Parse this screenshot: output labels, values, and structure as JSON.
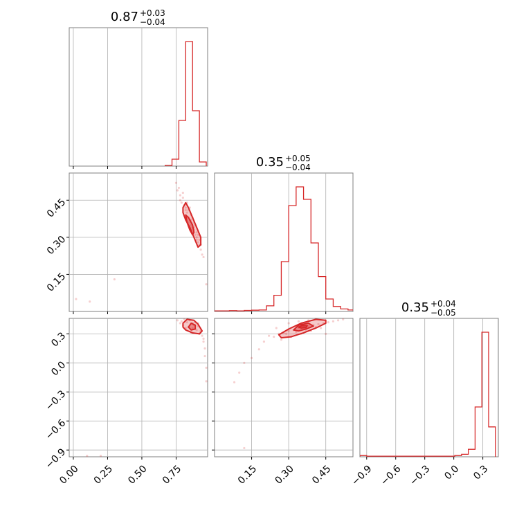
{
  "chart_data": {
    "type": "corner",
    "color": "#d62728",
    "grid": true,
    "parameters": [
      {
        "title": {
          "median": "0.87",
          "plus": "+0.03",
          "minus": "−0.04"
        },
        "range": [
          -0.03,
          0.98
        ],
        "ticks": [
          0.0,
          0.25,
          0.5,
          0.75
        ],
        "tick_labels": [
          "0.00",
          "0.25",
          "0.50",
          "0.75"
        ],
        "histogram": {
          "bin_edges": [
            0.67,
            0.72,
            0.77,
            0.82,
            0.87,
            0.92,
            0.97
          ],
          "counts": [
            0.005,
            0.05,
            0.33,
            0.9,
            0.4,
            0.03
          ]
        }
      },
      {
        "title": {
          "median": "0.35",
          "plus": "+0.05",
          "minus": "−0.04"
        },
        "range": [
          0.0,
          0.56
        ],
        "ticks": [
          0.15,
          0.3,
          0.45
        ],
        "tick_labels": [
          "0.15",
          "0.30",
          "0.45"
        ],
        "histogram": {
          "bin_edges": [
            0.0,
            0.03,
            0.06,
            0.09,
            0.12,
            0.15,
            0.18,
            0.21,
            0.24,
            0.27,
            0.3,
            0.33,
            0.36,
            0.39,
            0.42,
            0.45,
            0.48,
            0.51,
            0.54,
            0.57
          ],
          "counts": [
            0.005,
            0.005,
            0.007,
            0.005,
            0.008,
            0.01,
            0.012,
            0.045,
            0.13,
            0.4,
            0.85,
            1.0,
            0.9,
            0.55,
            0.28,
            0.1,
            0.04,
            0.02,
            0.012
          ]
        }
      },
      {
        "title": {
          "median": "0.35",
          "plus": "+0.04",
          "minus": "−0.05"
        },
        "range": [
          -0.97,
          0.46
        ],
        "ticks": [
          -0.9,
          -0.6,
          -0.3,
          0.0,
          0.3
        ],
        "tick_labels": [
          "−0.9",
          "−0.6",
          "−0.3",
          "0.0",
          "0.3"
        ],
        "histogram": {
          "bin_edges": [
            -0.97,
            -0.9,
            -0.83,
            -0.76,
            -0.69,
            -0.62,
            -0.55,
            -0.48,
            -0.41,
            -0.34,
            -0.27,
            -0.2,
            -0.13,
            -0.06,
            0.01,
            0.08,
            0.15,
            0.22,
            0.29,
            0.36,
            0.43
          ],
          "counts": [
            0.01,
            0.005,
            0.005,
            0.005,
            0.005,
            0.005,
            0.005,
            0.005,
            0.005,
            0.005,
            0.005,
            0.005,
            0.005,
            0.005,
            0.01,
            0.02,
            0.06,
            0.4,
            1.0,
            0.24
          ]
        }
      }
    ],
    "pairs": [
      {
        "x_param": 0,
        "y_param": 1,
        "points": [
          [
            0.75,
            0.52
          ],
          [
            0.77,
            0.5
          ],
          [
            0.78,
            0.47
          ],
          [
            0.8,
            0.46
          ],
          [
            0.79,
            0.44
          ],
          [
            0.81,
            0.43
          ],
          [
            0.82,
            0.41
          ],
          [
            0.83,
            0.4
          ],
          [
            0.84,
            0.38
          ],
          [
            0.85,
            0.37
          ],
          [
            0.86,
            0.35
          ],
          [
            0.87,
            0.34
          ],
          [
            0.88,
            0.33
          ],
          [
            0.89,
            0.31
          ],
          [
            0.9,
            0.3
          ],
          [
            0.91,
            0.28
          ],
          [
            0.92,
            0.27
          ],
          [
            0.93,
            0.25
          ],
          [
            0.94,
            0.23
          ],
          [
            0.8,
            0.48
          ],
          [
            0.83,
            0.44
          ],
          [
            0.86,
            0.39
          ],
          [
            0.88,
            0.36
          ],
          [
            0.9,
            0.32
          ],
          [
            0.92,
            0.29
          ],
          [
            0.85,
            0.42
          ],
          [
            0.87,
            0.38
          ],
          [
            0.89,
            0.35
          ],
          [
            0.91,
            0.31
          ],
          [
            0.93,
            0.27
          ],
          [
            0.76,
            0.49
          ],
          [
            0.78,
            0.45
          ],
          [
            0.82,
            0.39
          ],
          [
            0.84,
            0.36
          ],
          [
            0.95,
            0.22
          ],
          [
            0.02,
            0.05
          ],
          [
            0.3,
            0.13
          ],
          [
            0.12,
            0.04
          ],
          [
            0.97,
            0.11
          ],
          [
            0.82,
            0.42
          ],
          [
            0.84,
            0.41
          ],
          [
            0.86,
            0.37
          ],
          [
            0.88,
            0.34
          ],
          [
            0.9,
            0.29
          ]
        ],
        "contours": [
          [
            [
              0.8,
              0.42
            ],
            [
              0.82,
              0.44
            ],
            [
              0.84,
              0.42
            ],
            [
              0.87,
              0.38
            ],
            [
              0.9,
              0.34
            ],
            [
              0.93,
              0.3
            ],
            [
              0.93,
              0.27
            ],
            [
              0.91,
              0.26
            ],
            [
              0.88,
              0.3
            ],
            [
              0.85,
              0.34
            ],
            [
              0.82,
              0.37
            ],
            [
              0.8,
              0.4
            ]
          ],
          [
            [
              0.82,
              0.39
            ],
            [
              0.84,
              0.38
            ],
            [
              0.87,
              0.35
            ],
            [
              0.88,
              0.32
            ],
            [
              0.87,
              0.31
            ],
            [
              0.85,
              0.33
            ],
            [
              0.83,
              0.36
            ]
          ]
        ]
      },
      {
        "x_param": 0,
        "y_param": 2,
        "points": [
          [
            0.76,
            0.44
          ],
          [
            0.79,
            0.43
          ],
          [
            0.81,
            0.45
          ],
          [
            0.83,
            0.42
          ],
          [
            0.85,
            0.44
          ],
          [
            0.87,
            0.41
          ],
          [
            0.89,
            0.42
          ],
          [
            0.91,
            0.38
          ],
          [
            0.93,
            0.33
          ],
          [
            0.94,
            0.28
          ],
          [
            0.95,
            0.22
          ],
          [
            0.96,
            0.15
          ],
          [
            0.96,
            0.07
          ],
          [
            0.97,
            -0.05
          ],
          [
            0.97,
            -0.19
          ],
          [
            0.84,
            0.37
          ],
          [
            0.88,
            0.39
          ],
          [
            0.9,
            0.34
          ],
          [
            0.86,
            0.31
          ],
          [
            0.92,
            0.3
          ],
          [
            0.8,
            0.39
          ],
          [
            0.78,
            0.41
          ],
          [
            0.95,
            0.25
          ],
          [
            0.82,
            0.36
          ],
          [
            0.2,
            -0.96
          ],
          [
            0.1,
            -0.96
          ],
          [
            0.91,
            0.41
          ],
          [
            0.87,
            0.36
          ]
        ],
        "contours": [
          [
            [
              0.8,
              0.41
            ],
            [
              0.83,
              0.45
            ],
            [
              0.88,
              0.44
            ],
            [
              0.91,
              0.4
            ],
            [
              0.94,
              0.33
            ],
            [
              0.92,
              0.3
            ],
            [
              0.87,
              0.31
            ],
            [
              0.82,
              0.34
            ],
            [
              0.8,
              0.37
            ]
          ],
          [
            [
              0.84,
              0.37
            ],
            [
              0.86,
              0.41
            ],
            [
              0.89,
              0.39
            ],
            [
              0.89,
              0.35
            ],
            [
              0.86,
              0.34
            ]
          ]
        ]
      },
      {
        "x_param": 1,
        "y_param": 2,
        "points": [
          [
            0.22,
            0.28
          ],
          [
            0.24,
            0.27
          ],
          [
            0.26,
            0.3
          ],
          [
            0.28,
            0.31
          ],
          [
            0.3,
            0.33
          ],
          [
            0.32,
            0.34
          ],
          [
            0.34,
            0.36
          ],
          [
            0.36,
            0.37
          ],
          [
            0.38,
            0.38
          ],
          [
            0.4,
            0.39
          ],
          [
            0.42,
            0.4
          ],
          [
            0.44,
            0.41
          ],
          [
            0.46,
            0.42
          ],
          [
            0.48,
            0.43
          ],
          [
            0.5,
            0.44
          ],
          [
            0.52,
            0.45
          ],
          [
            0.2,
            0.22
          ],
          [
            0.18,
            0.14
          ],
          [
            0.15,
            0.05
          ],
          [
            0.12,
            0.0
          ],
          [
            0.1,
            -0.1
          ],
          [
            0.27,
            0.24
          ],
          [
            0.31,
            0.27
          ],
          [
            0.35,
            0.3
          ],
          [
            0.39,
            0.33
          ],
          [
            0.43,
            0.36
          ],
          [
            0.3,
            0.41
          ],
          [
            0.34,
            0.43
          ],
          [
            0.38,
            0.44
          ],
          [
            0.25,
            0.36
          ],
          [
            0.45,
            0.3
          ],
          [
            0.12,
            -0.88
          ],
          [
            0.08,
            -0.2
          ],
          [
            0.33,
            0.32
          ],
          [
            0.37,
            0.34
          ],
          [
            0.41,
            0.37
          ],
          [
            0.29,
            0.3
          ]
        ],
        "contours": [
          [
            [
              0.26,
              0.29
            ],
            [
              0.3,
              0.35
            ],
            [
              0.35,
              0.41
            ],
            [
              0.41,
              0.45
            ],
            [
              0.45,
              0.44
            ],
            [
              0.45,
              0.41
            ],
            [
              0.41,
              0.36
            ],
            [
              0.36,
              0.31
            ],
            [
              0.31,
              0.27
            ],
            [
              0.27,
              0.26
            ]
          ],
          [
            [
              0.32,
              0.34
            ],
            [
              0.34,
              0.39
            ],
            [
              0.38,
              0.41
            ],
            [
              0.4,
              0.38
            ],
            [
              0.37,
              0.35
            ],
            [
              0.34,
              0.33
            ]
          ],
          [
            [
              0.34,
              0.37
            ],
            [
              0.355,
              0.385
            ],
            [
              0.375,
              0.385
            ],
            [
              0.37,
              0.365
            ],
            [
              0.35,
              0.36
            ]
          ]
        ]
      }
    ]
  }
}
